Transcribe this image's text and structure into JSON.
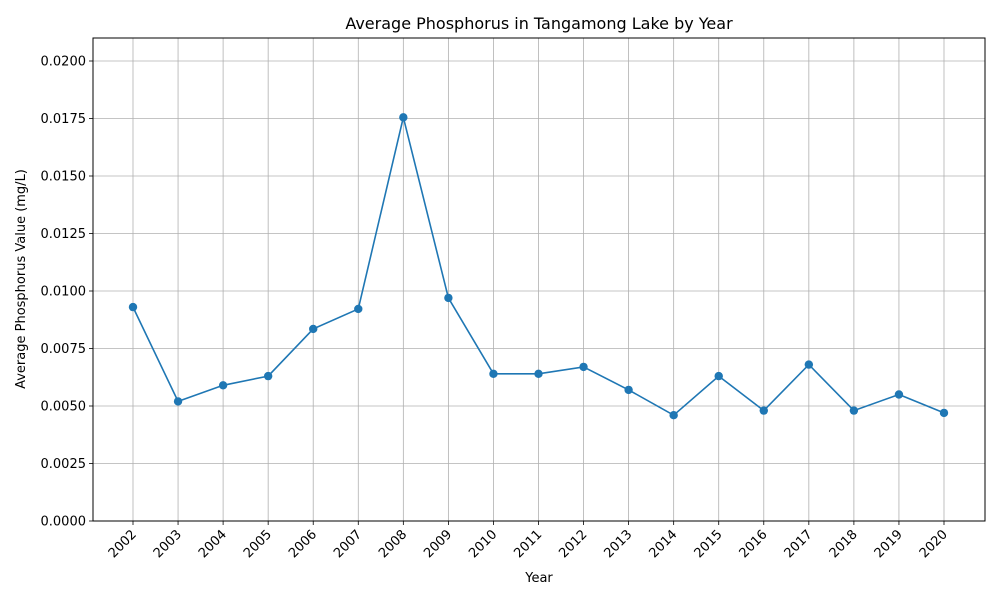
{
  "chart_data": {
    "type": "line",
    "title": "Average Phosphorus in Tangamong Lake by Year",
    "xlabel": "Year",
    "ylabel": "Average Phosphorus Value (mg/L)",
    "categories": [
      "2002",
      "2003",
      "2004",
      "2005",
      "2006",
      "2007",
      "2008",
      "2009",
      "2010",
      "2011",
      "2012",
      "2013",
      "2014",
      "2015",
      "2016",
      "2017",
      "2018",
      "2019",
      "2020"
    ],
    "series": [
      {
        "values": [
          0.0093,
          0.0052,
          0.0059,
          0.0063,
          0.00835,
          0.00922,
          0.01755,
          0.0097,
          0.0064,
          0.0064,
          0.0067,
          0.0057,
          0.0046,
          0.0063,
          0.0048,
          0.0068,
          0.0048,
          0.0055,
          0.0047
        ],
        "color": "#1f77b4",
        "marker": "circle"
      }
    ],
    "ylim": [
      0,
      0.021
    ],
    "yticks": [
      "0.0000",
      "0.0025",
      "0.0050",
      "0.0075",
      "0.0100",
      "0.0125",
      "0.0150",
      "0.0175",
      "0.0200"
    ],
    "grid": true,
    "legend": "none"
  }
}
